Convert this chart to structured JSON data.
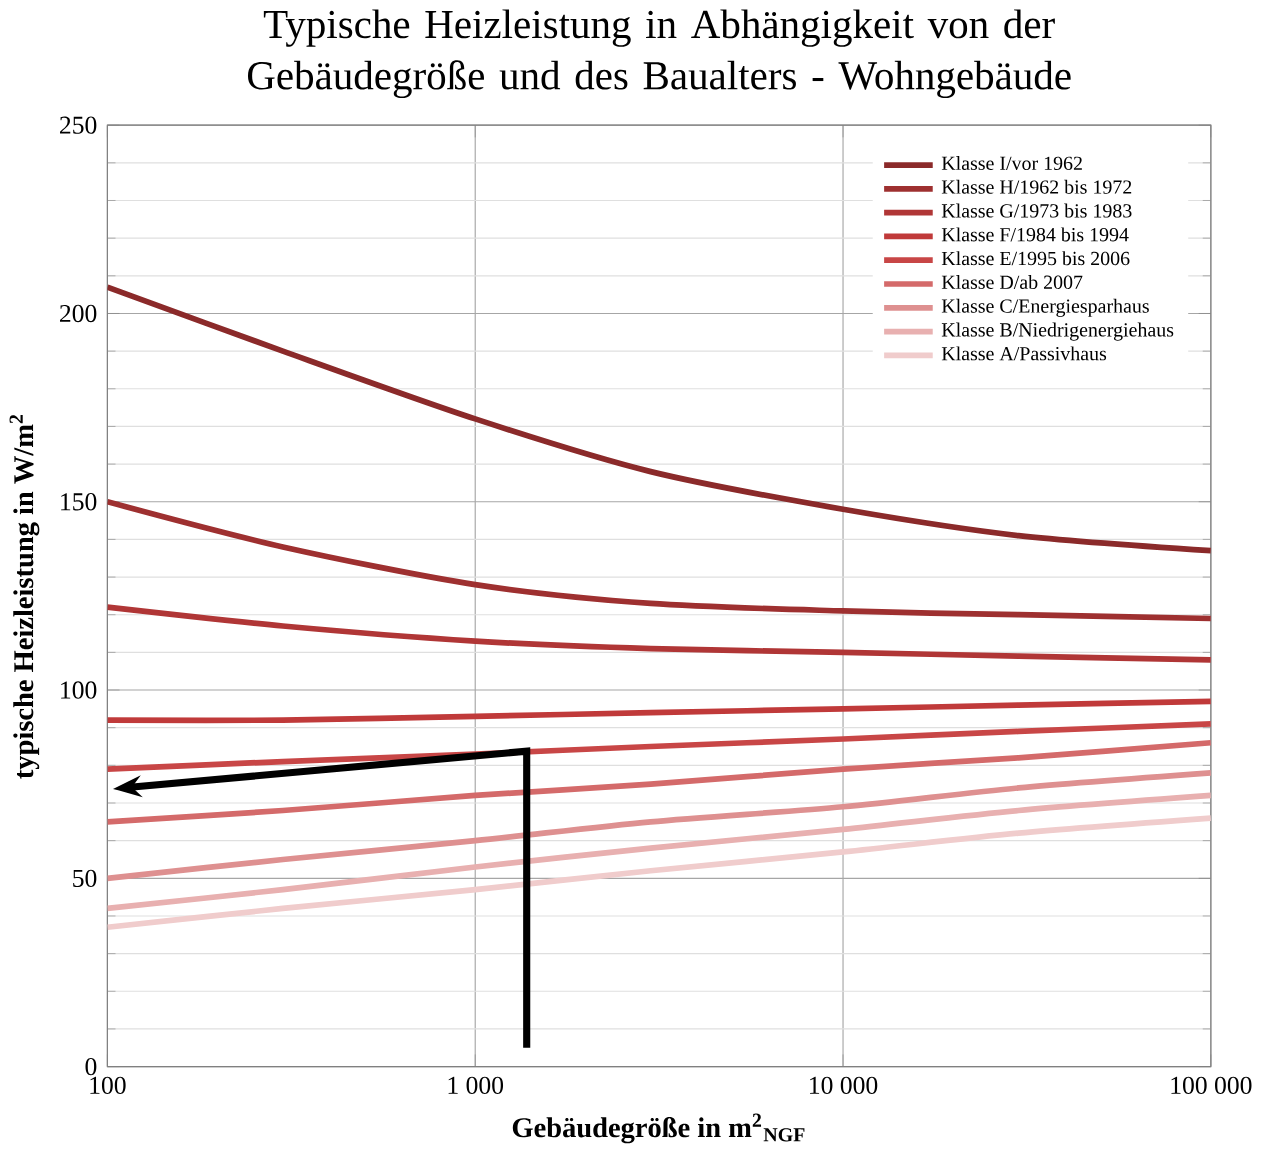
{
  "chart_data": {
    "type": "line",
    "title": "Typische Heizleistung in Abhängigkeit von der Gebäudegröße und  des Baualters - Wohngebäude",
    "xlabel": "Gebäudegröße in m$^{2}$$_{NGF}$",
    "ylabel": "typische Heizleistung  in W/m$^{2}$",
    "x": [
      100,
      300,
      1000,
      3000,
      10000,
      30000,
      100000
    ],
    "series": [
      {
        "name": "Klasse I/vor 1962",
        "color": "#8b2a2a",
        "values": [
          207,
          190,
          172,
          158,
          148,
          141,
          137
        ]
      },
      {
        "name": "Klasse H/1962  bis 1972",
        "color": "#9e3030",
        "values": [
          150,
          138,
          128,
          123,
          121,
          120,
          119
        ]
      },
      {
        "name": "Klasse G/1973  bis 1983",
        "color": "#b03636",
        "values": [
          122,
          117,
          113,
          111,
          110,
          109,
          108
        ]
      },
      {
        "name": "Klasse F/1984  bis 1994",
        "color": "#c03a3a",
        "values": [
          92,
          92,
          93,
          94,
          95,
          96,
          97
        ]
      },
      {
        "name": "Klasse E/1995 bis 2006",
        "color": "#c84646",
        "values": [
          79,
          81,
          83,
          85,
          87,
          89,
          91
        ]
      },
      {
        "name": "Klasse D/ab  2007",
        "color": "#d46a6a",
        "values": [
          65,
          68,
          72,
          75,
          79,
          82,
          86
        ]
      },
      {
        "name": "Klasse C/Energiesparhaus",
        "color": "#de9090",
        "values": [
          50,
          55,
          60,
          65,
          69,
          74,
          78
        ]
      },
      {
        "name": "Klasse B/Niedrigenergiehaus",
        "color": "#e8b0b0",
        "values": [
          42,
          47,
          53,
          58,
          63,
          68,
          72
        ]
      },
      {
        "name": "Klasse A/Passivhaus",
        "color": "#f0cccc",
        "values": [
          37,
          42,
          47,
          52,
          57,
          62,
          66
        ]
      }
    ],
    "log": "x",
    "xlim": [
      100,
      100000
    ],
    "xticks": [
      100,
      {
        "value": 1000,
        "label": "1 000"
      },
      {
        "value": 10000,
        "label": "10 000"
      },
      {
        "value": 100000,
        "label": "100 000"
      }
    ],
    "ylim": [
      0,
      250
    ],
    "yticks": [
      0,
      50,
      100,
      150,
      200,
      250
    ],
    "grid": true,
    "legend": "top right",
    "marker": "none",
    "line_style": "solid"
  }
}
